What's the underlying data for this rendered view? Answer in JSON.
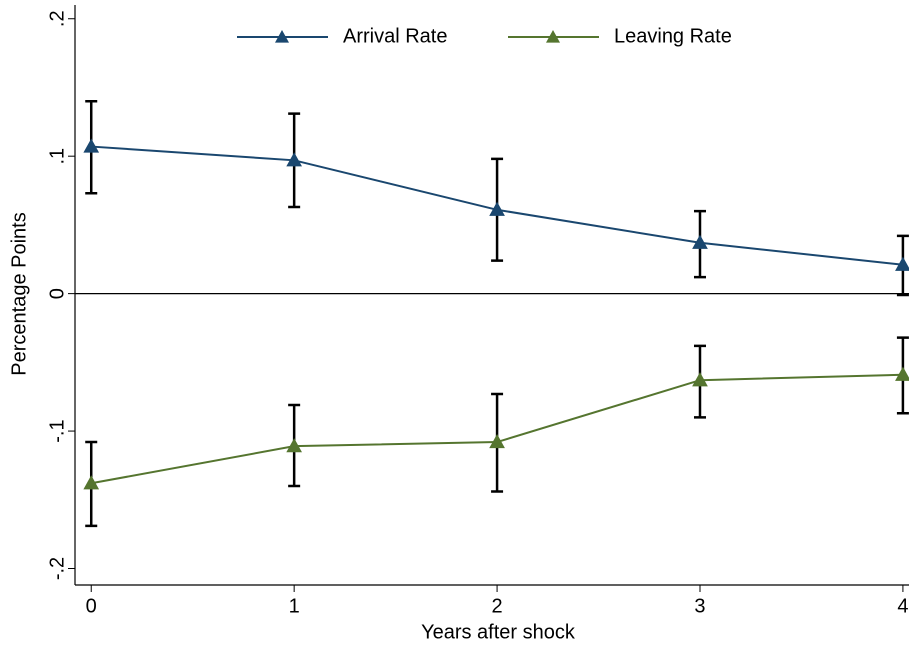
{
  "chart_data": {
    "type": "line",
    "x_label": "Years after shock",
    "y_label": "Percentage Points",
    "x": [
      0,
      1,
      2,
      3,
      4
    ],
    "series": [
      {
        "name": "Arrival Rate",
        "color": "#1a476f",
        "values": [
          0.107,
          0.097,
          0.061,
          0.037,
          0.021
        ],
        "lower": [
          0.073,
          0.063,
          0.024,
          0.012,
          -0.001
        ],
        "upper": [
          0.14,
          0.131,
          0.098,
          0.06,
          0.042
        ]
      },
      {
        "name": "Leaving Rate",
        "color": "#55752f",
        "values": [
          -0.138,
          -0.111,
          -0.108,
          -0.063,
          -0.059
        ],
        "lower": [
          -0.169,
          -0.14,
          -0.144,
          -0.09,
          -0.087
        ],
        "upper": [
          -0.108,
          -0.081,
          -0.073,
          -0.038,
          -0.032
        ]
      }
    ],
    "xlim": [
      -0.08,
      4.03
    ],
    "ylim": [
      -0.212,
      0.21
    ],
    "xticks": [
      0,
      1,
      2,
      3,
      4
    ],
    "yticks": [
      {
        "value": -0.2,
        "label": "-.2"
      },
      {
        "value": -0.1,
        "label": "-.1"
      },
      0,
      {
        "value": 0.1,
        "label": ".1"
      },
      {
        "value": 0.2,
        "label": ".2"
      }
    ],
    "yline": 0,
    "legend": "top"
  }
}
